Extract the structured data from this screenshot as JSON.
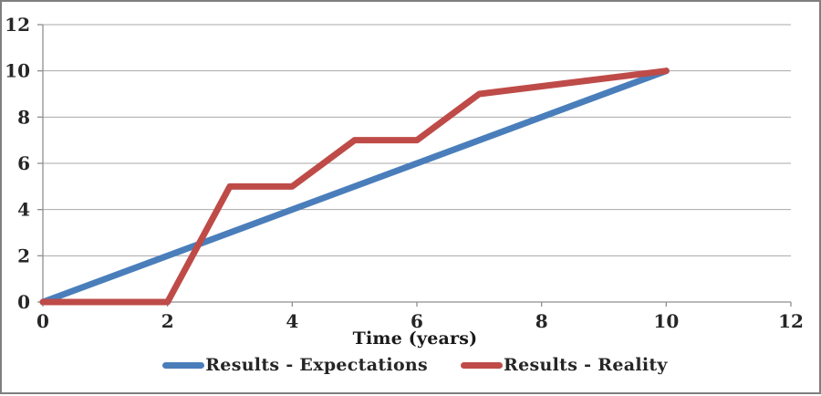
{
  "chart_data": {
    "type": "line",
    "title": "",
    "xlabel": "Time (years)",
    "ylabel": "",
    "xlim": [
      0,
      12
    ],
    "ylim": [
      0,
      12
    ],
    "xticks": [
      0,
      2,
      4,
      6,
      8,
      10,
      12
    ],
    "yticks": [
      0,
      2,
      4,
      6,
      8,
      10,
      12
    ],
    "grid": "horizontal",
    "grid_color": "#a8a8a8",
    "axis_color": "#8e8e8e",
    "tick_label_color": "#262626",
    "legend_position": "bottom",
    "series": [
      {
        "name": "Results - Expectations",
        "color": "#4a7ebb",
        "points": [
          [
            0,
            0
          ],
          [
            10,
            10
          ]
        ]
      },
      {
        "name": "Results - Reality",
        "color": "#be4b48",
        "points": [
          [
            0,
            0
          ],
          [
            2,
            0
          ],
          [
            3,
            5
          ],
          [
            4,
            5
          ],
          [
            5,
            7
          ],
          [
            6,
            7
          ],
          [
            7,
            9
          ],
          [
            10,
            10
          ]
        ]
      }
    ]
  }
}
